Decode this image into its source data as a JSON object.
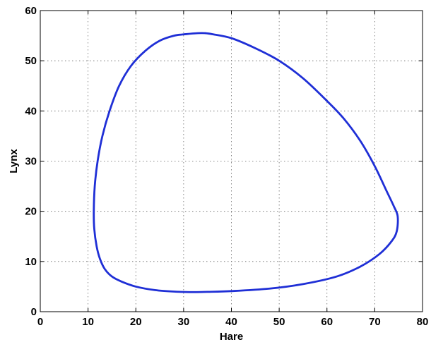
{
  "chart_data": {
    "type": "line",
    "title": "",
    "xlabel": "Hare",
    "ylabel": "Lynx",
    "xlim": [
      0,
      80
    ],
    "ylim": [
      0,
      60
    ],
    "xticks": [
      0,
      10,
      20,
      30,
      40,
      50,
      60,
      70,
      80
    ],
    "yticks": [
      0,
      10,
      20,
      30,
      40,
      50,
      60
    ],
    "grid": true,
    "legend": "none",
    "series": [
      {
        "color": "#1f2fd6",
        "closed": true,
        "x": [
          11.2,
          11.4,
          12.0,
          13.0,
          14.5,
          16.5,
          19.0,
          22.0,
          25.0,
          28.0,
          30.5,
          33.0,
          34.5,
          36.0,
          40.0,
          45.0,
          50.0,
          55.0,
          60.0,
          63.5,
          67.0,
          70.0,
          72.5,
          74.0,
          74.8,
          74.6,
          73.5,
          71.0,
          67.0,
          62.0,
          55.0,
          48.0,
          40.0,
          35.0,
          32.0,
          28.0,
          24.0,
          20.0,
          17.0,
          15.0,
          13.5,
          12.5,
          11.8,
          11.3,
          11.2
        ],
        "y": [
          20.0,
          25.0,
          30.0,
          35.0,
          40.0,
          45.0,
          49.0,
          52.0,
          54.0,
          55.0,
          55.3,
          55.5,
          55.5,
          55.3,
          54.5,
          52.5,
          50.0,
          46.5,
          42.0,
          38.5,
          34.0,
          29.0,
          24.0,
          21.0,
          19.0,
          16.0,
          14.0,
          11.5,
          9.0,
          7.0,
          5.5,
          4.6,
          4.1,
          3.95,
          3.9,
          4.0,
          4.3,
          5.0,
          6.0,
          7.0,
          8.5,
          10.5,
          13.0,
          16.5,
          20.0
        ]
      }
    ]
  }
}
